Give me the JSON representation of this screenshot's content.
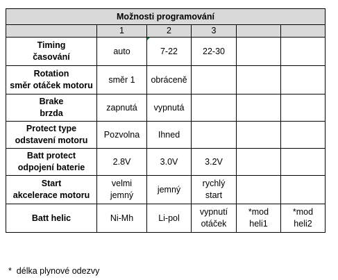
{
  "title": "Možnosti programování",
  "columns": [
    "",
    "1",
    "2",
    "3",
    "",
    ""
  ],
  "rows": [
    {
      "label": [
        "Timing",
        "časování"
      ],
      "values": [
        [
          "auto"
        ],
        [
          "7-22"
        ],
        [
          "22-30"
        ],
        [],
        []
      ]
    },
    {
      "label": [
        "Rotation",
        "směr otáček motoru"
      ],
      "values": [
        [
          "směr 1"
        ],
        [
          "obráceně"
        ],
        [],
        [],
        []
      ]
    },
    {
      "label": [
        "Brake",
        "brzda"
      ],
      "values": [
        [
          "zapnutá"
        ],
        [
          "vypnutá"
        ],
        [],
        [],
        []
      ]
    },
    {
      "label": [
        "Protect type",
        "odstavení motoru"
      ],
      "values": [
        [
          "Pozvolna"
        ],
        [
          "Ihned"
        ],
        [],
        [],
        []
      ]
    },
    {
      "label": [
        "Batt protect",
        "odpojení baterie"
      ],
      "values": [
        [
          "2.8V"
        ],
        [
          "3.0V"
        ],
        [
          "3.2V"
        ],
        [],
        []
      ]
    },
    {
      "label": [
        "Start",
        "akcelerace motoru"
      ],
      "values": [
        [
          "velmi",
          "jemný"
        ],
        [
          "jemný"
        ],
        [
          "rychlý",
          "start"
        ],
        [],
        []
      ]
    },
    {
      "label": [
        "Batt helic"
      ],
      "values": [
        [
          "Ni-Mh"
        ],
        [
          "Li-pol"
        ],
        [
          "vypnutí",
          "otáček"
        ],
        [
          "*mod",
          "heli1"
        ],
        [
          "*mod",
          "heli2"
        ]
      ]
    }
  ],
  "footnote": "*  délka plynové odezvy",
  "colors": {
    "header_fill": "#d9d9d9",
    "grid": "#000000",
    "comment_marker": "#1f7a3a"
  }
}
